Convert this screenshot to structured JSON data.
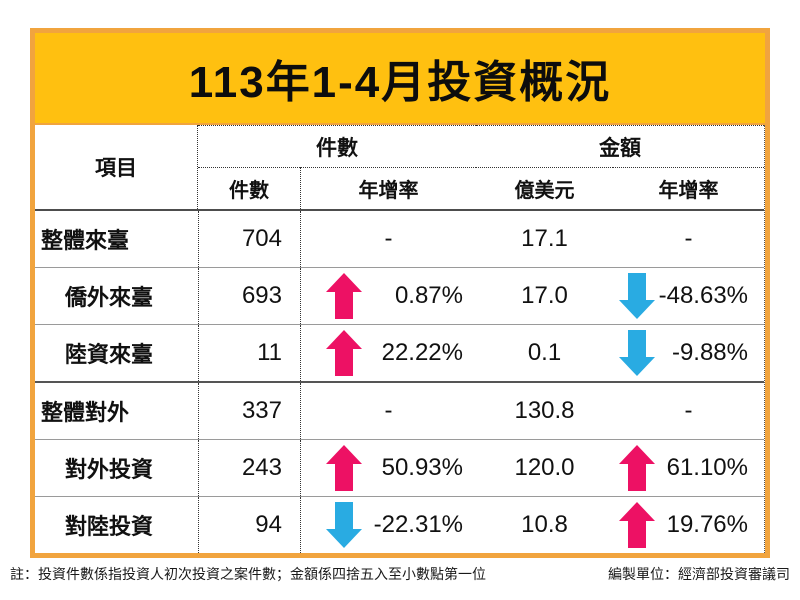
{
  "title": "113年1-4月投資概況",
  "colors": {
    "title_background": "#FFC010",
    "frame_border": "#F1A43E",
    "up_arrow": "#ED1164",
    "down_arrow": "#29ABE2"
  },
  "table": {
    "item_header": "項目",
    "group_headers": {
      "count": "件數",
      "amount": "金額"
    },
    "sub_headers": {
      "count": "件數",
      "count_yoy": "年增率",
      "amount_unit": "億美元",
      "amount_yoy": "年增率"
    },
    "no_change_symbol": "-",
    "rows": [
      {
        "label": "整體來臺",
        "indent": false,
        "section": false,
        "count": "704",
        "count_yoy": {
          "arrow": null,
          "value": "-"
        },
        "amount": "17.1",
        "amount_yoy": {
          "arrow": null,
          "value": "-"
        }
      },
      {
        "label": "僑外來臺",
        "indent": true,
        "section": false,
        "count": "693",
        "count_yoy": {
          "arrow": "up",
          "value": "0.87%"
        },
        "amount": "17.0",
        "amount_yoy": {
          "arrow": "down",
          "value": "-48.63%"
        }
      },
      {
        "label": "陸資來臺",
        "indent": true,
        "section": false,
        "count": "11",
        "count_yoy": {
          "arrow": "up",
          "value": "22.22%"
        },
        "amount": "0.1",
        "amount_yoy": {
          "arrow": "down",
          "value": "-9.88%"
        }
      },
      {
        "label": "整體對外",
        "indent": false,
        "section": true,
        "count": "337",
        "count_yoy": {
          "arrow": null,
          "value": "-"
        },
        "amount": "130.8",
        "amount_yoy": {
          "arrow": null,
          "value": "-"
        }
      },
      {
        "label": "對外投資",
        "indent": true,
        "section": false,
        "count": "243",
        "count_yoy": {
          "arrow": "up",
          "value": "50.93%"
        },
        "amount": "120.0",
        "amount_yoy": {
          "arrow": "up",
          "value": "61.10%"
        }
      },
      {
        "label": "對陸投資",
        "indent": true,
        "section": false,
        "count": "94",
        "count_yoy": {
          "arrow": "down",
          "value": "-22.31%"
        },
        "amount": "10.8",
        "amount_yoy": {
          "arrow": "up",
          "value": "19.76%"
        }
      }
    ]
  },
  "footer": {
    "note": "註：投資件數係指投資人初次投資之案件數；金額係四捨五入至小數點第一位",
    "source": "編製單位：經濟部投資審議司"
  },
  "chart_data": {
    "type": "table",
    "title": "113年1-4月投資概況",
    "columns": [
      "項目",
      "件數",
      "件數年增率",
      "金額(億美元)",
      "金額年增率"
    ],
    "rows": [
      [
        "整體來臺",
        704,
        null,
        17.1,
        null
      ],
      [
        "僑外來臺",
        693,
        0.87,
        17.0,
        -48.63
      ],
      [
        "陸資來臺",
        11,
        22.22,
        0.1,
        -9.88
      ],
      [
        "整體對外",
        337,
        null,
        130.8,
        null
      ],
      [
        "對外投資",
        243,
        50.93,
        120.0,
        61.1
      ],
      [
        "對陸投資",
        94,
        -22.31,
        10.8,
        19.76
      ]
    ],
    "yoy_unit": "%",
    "note": "註：投資件數係指投資人初次投資之案件數；金額係四捨五入至小數點第一位",
    "source": "編製單位：經濟部投資審議司"
  }
}
